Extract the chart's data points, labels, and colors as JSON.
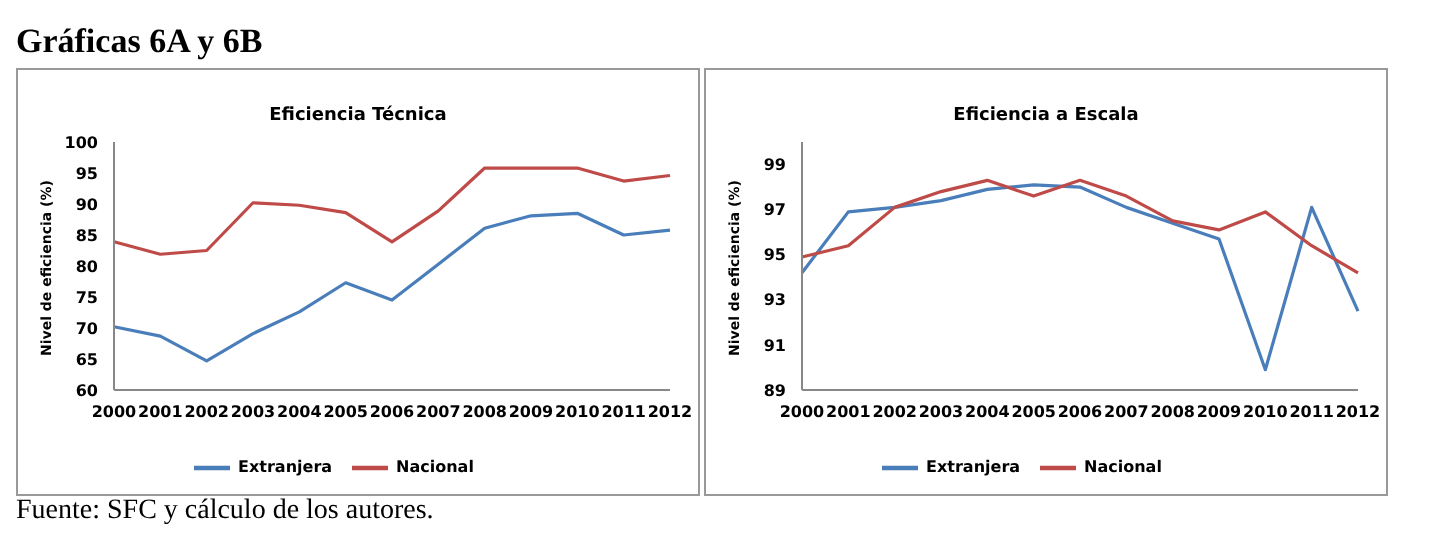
{
  "chart_data": [
    {
      "type": "line",
      "title": "Eficiencia Técnica",
      "ylabel": "Nivel de eficiencia (%)",
      "annotations": [
        "Gráficas 6A y 6B",
        "Fuente: SFC y cálculo de los autores."
      ],
      "categories": [
        "2000",
        "2001",
        "2002",
        "2003",
        "2004",
        "2005",
        "2006",
        "2007",
        "2008",
        "2009",
        "2010",
        "2011",
        "2012"
      ],
      "series": [
        {
          "name": "Extranjera",
          "color": "#4a7ebb",
          "values": [
            70.2,
            68.7,
            64.7,
            69.1,
            72.6,
            77.3,
            74.5,
            80.3,
            86.1,
            88.1,
            88.5,
            85.0,
            85.8
          ]
        },
        {
          "name": "Nacional",
          "color": "#be4b48",
          "values": [
            83.9,
            81.9,
            82.5,
            90.2,
            89.8,
            88.6,
            83.9,
            88.9,
            95.8,
            95.8,
            95.8,
            93.7,
            94.6
          ]
        }
      ],
      "ylim": [
        60,
        100
      ],
      "yticks": [
        60,
        65,
        70,
        75,
        80,
        85,
        90,
        95,
        100
      ],
      "grid": false,
      "legend": "bottom",
      "marker": "none"
    },
    {
      "type": "line",
      "title": "Eficiencia a Escala",
      "ylabel": "Nivel de eficiencia (%)",
      "categories": [
        "2000",
        "2001",
        "2002",
        "2003",
        "2004",
        "2005",
        "2006",
        "2007",
        "2008",
        "2009",
        "2010",
        "2011",
        "2012"
      ],
      "series": [
        {
          "name": "Extranjera",
          "color": "#4a7ebb",
          "values": [
            94.2,
            96.9,
            97.1,
            97.4,
            97.9,
            98.1,
            98.0,
            97.1,
            96.4,
            95.7,
            89.9,
            97.1,
            92.5
          ]
        },
        {
          "name": "Nacional",
          "color": "#be4b48",
          "values": [
            94.9,
            95.4,
            97.1,
            97.8,
            98.3,
            97.6,
            98.3,
            97.6,
            96.5,
            96.1,
            96.9,
            95.4,
            94.2
          ]
        }
      ],
      "ylim": [
        89,
        100
      ],
      "yticks": [
        89,
        91,
        93,
        95,
        97,
        99
      ],
      "grid": false,
      "legend": "bottom",
      "marker": "none"
    }
  ]
}
